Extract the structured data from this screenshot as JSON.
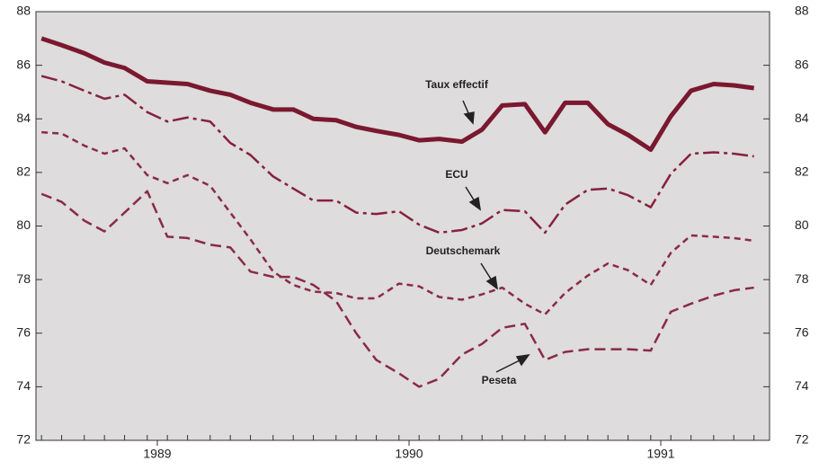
{
  "chart_data": {
    "type": "line",
    "x": [
      1988.54,
      1988.62,
      1988.71,
      1988.79,
      1988.87,
      1988.96,
      1989.04,
      1989.12,
      1989.21,
      1989.29,
      1989.37,
      1989.46,
      1989.54,
      1989.62,
      1989.71,
      1989.79,
      1989.87,
      1989.96,
      1990.04,
      1990.12,
      1990.21,
      1990.29,
      1990.37,
      1990.46,
      1990.54,
      1990.62,
      1990.71,
      1990.79,
      1990.87,
      1990.96,
      1991.04,
      1991.12,
      1991.21,
      1991.29,
      1991.37
    ],
    "series": [
      {
        "name": "Taux effectif",
        "color": "#7a1830",
        "width": 5,
        "dash": "none",
        "values": [
          87.0,
          86.75,
          86.45,
          86.1,
          85.9,
          85.4,
          85.35,
          85.3,
          85.05,
          84.9,
          84.6,
          84.35,
          84.35,
          84.0,
          83.95,
          83.7,
          83.55,
          83.4,
          83.2,
          83.25,
          83.15,
          83.6,
          84.5,
          84.55,
          83.5,
          84.6,
          84.6,
          83.8,
          83.4,
          82.85,
          84.1,
          85.05,
          85.3,
          85.25,
          85.15
        ]
      },
      {
        "name": "ECU",
        "color": "#86203d",
        "width": 2.5,
        "dash": "18 5 4 5",
        "values": [
          85.6,
          85.4,
          85.05,
          84.75,
          84.9,
          84.25,
          83.9,
          84.05,
          83.9,
          83.1,
          82.65,
          81.85,
          81.4,
          80.95,
          80.95,
          80.5,
          80.45,
          80.55,
          80.05,
          79.75,
          79.85,
          80.1,
          80.6,
          80.55,
          79.75,
          80.8,
          81.35,
          81.4,
          81.15,
          80.7,
          81.95,
          82.7,
          82.75,
          82.7,
          82.6
        ]
      },
      {
        "name": "Deutschemark",
        "color": "#8a2a48",
        "width": 2.5,
        "dash": "7 5",
        "values": [
          83.5,
          83.45,
          83.0,
          82.7,
          82.9,
          81.9,
          81.6,
          81.9,
          81.5,
          80.5,
          79.5,
          78.3,
          77.8,
          77.55,
          77.5,
          77.3,
          77.3,
          77.85,
          77.75,
          77.35,
          77.25,
          77.45,
          77.7,
          77.1,
          76.7,
          77.5,
          78.15,
          78.6,
          78.35,
          77.8,
          79.0,
          79.65,
          79.6,
          79.55,
          79.45
        ]
      },
      {
        "name": "Peseta",
        "color": "#8a2a48",
        "width": 2.5,
        "dash": "12 6",
        "values": [
          81.2,
          80.9,
          80.2,
          79.8,
          80.5,
          81.3,
          79.6,
          79.55,
          79.3,
          79.2,
          78.3,
          78.1,
          78.1,
          77.8,
          77.2,
          76.0,
          75.0,
          74.5,
          74.0,
          74.3,
          75.2,
          75.6,
          76.2,
          76.35,
          75.0,
          75.3,
          75.4,
          75.4,
          75.4,
          75.35,
          76.8,
          77.1,
          77.4,
          77.6,
          77.7
        ]
      }
    ],
    "annotations": [
      {
        "text": "Taux effectif"
      },
      {
        "text": "ECU"
      },
      {
        "text": "Deutschemark"
      },
      {
        "text": "Peseta"
      }
    ],
    "xlim": [
      1988.518,
      1991.432
    ],
    "xticks": [
      1989,
      1990,
      1991
    ],
    "ylim": [
      72,
      88
    ],
    "yticks": [
      72,
      74,
      76,
      78,
      80,
      82,
      84,
      86,
      88
    ],
    "y2lim": [
      72,
      88
    ],
    "y2ticks": [
      72,
      74,
      76,
      78,
      80,
      82,
      84,
      86,
      88
    ],
    "grid": false
  }
}
